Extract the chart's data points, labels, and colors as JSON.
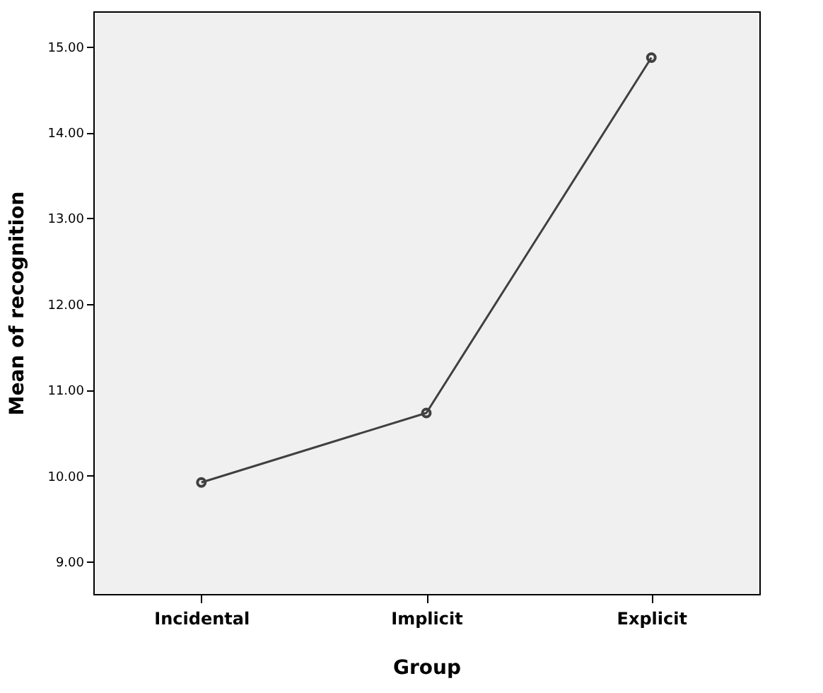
{
  "chart_data": {
    "type": "line",
    "xlabel": "Group",
    "ylabel": "Mean of recognition",
    "categories": [
      "Incidental",
      "Implicit",
      "Explicit"
    ],
    "series": [
      {
        "color": "#404040",
        "values": [
          9.92,
          10.73,
          14.87
        ]
      }
    ],
    "ylim": [
      8.62,
      15.41
    ],
    "yticks": [
      {
        "value": 9,
        "label": "9.00"
      },
      {
        "value": 10,
        "label": "10.00"
      },
      {
        "value": 11,
        "label": "11.00"
      },
      {
        "value": 12,
        "label": "12.00"
      },
      {
        "value": 13,
        "label": "13.00"
      },
      {
        "value": 14,
        "label": "14.00"
      },
      {
        "value": 15,
        "label": "15.00"
      }
    ],
    "marker": "circle",
    "line_style": "solid",
    "grid": false
  }
}
